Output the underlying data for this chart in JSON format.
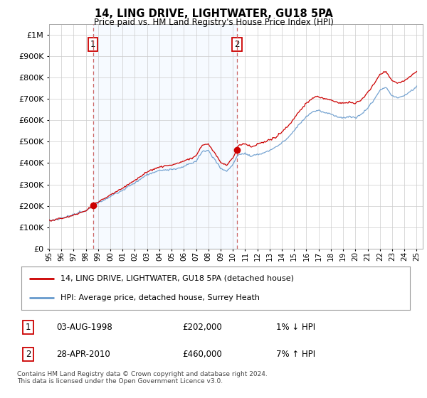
{
  "title": "14, LING DRIVE, LIGHTWATER, GU18 5PA",
  "subtitle": "Price paid vs. HM Land Registry's House Price Index (HPI)",
  "ytick_values": [
    0,
    100000,
    200000,
    300000,
    400000,
    500000,
    600000,
    700000,
    800000,
    900000,
    1000000
  ],
  "ylim": [
    0,
    1050000
  ],
  "xlim_start": 1995.0,
  "xlim_end": 2025.5,
  "sale1_x": 1998.583,
  "sale1_y": 202000,
  "sale2_x": 2010.33,
  "sale2_y": 460000,
  "sale1_label": "1",
  "sale2_label": "2",
  "legend_line1": "14, LING DRIVE, LIGHTWATER, GU18 5PA (detached house)",
  "legend_line2": "HPI: Average price, detached house, Surrey Heath",
  "table_row1": [
    "1",
    "03-AUG-1998",
    "£202,000",
    "1% ↓ HPI"
  ],
  "table_row2": [
    "2",
    "28-APR-2010",
    "£460,000",
    "7% ↑ HPI"
  ],
  "footnote": "Contains HM Land Registry data © Crown copyright and database right 2024.\nThis data is licensed under the Open Government Licence v3.0.",
  "line_color_red": "#cc0000",
  "line_color_blue": "#6699cc",
  "bg_color": "#ffffff",
  "grid_color": "#cccccc",
  "sale_marker_color": "#cc0000",
  "dashed_line_color": "#cc6666",
  "box_border_color": "#cc0000",
  "shade_color": "#ddeeff"
}
